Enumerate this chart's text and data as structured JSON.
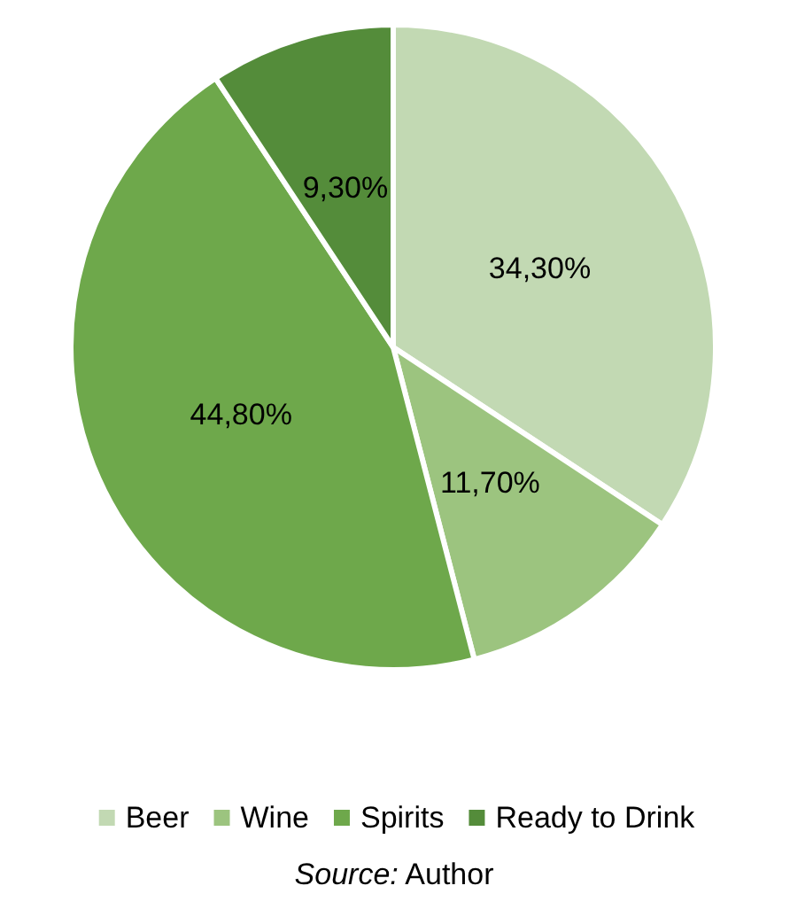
{
  "chart_data": {
    "type": "pie",
    "categories": [
      "Beer",
      "Wine",
      "Spirits",
      "Ready to Drink"
    ],
    "values": [
      34.3,
      11.7,
      44.8,
      9.3
    ],
    "colors": [
      "#c2d9b3",
      "#9cc47f",
      "#6ea84b",
      "#548c3a"
    ],
    "value_labels": [
      "34,30%",
      "11,70%",
      "44,80%",
      "9,30%"
    ],
    "legend": "bottom",
    "annotations": [
      "Source: Author"
    ]
  }
}
